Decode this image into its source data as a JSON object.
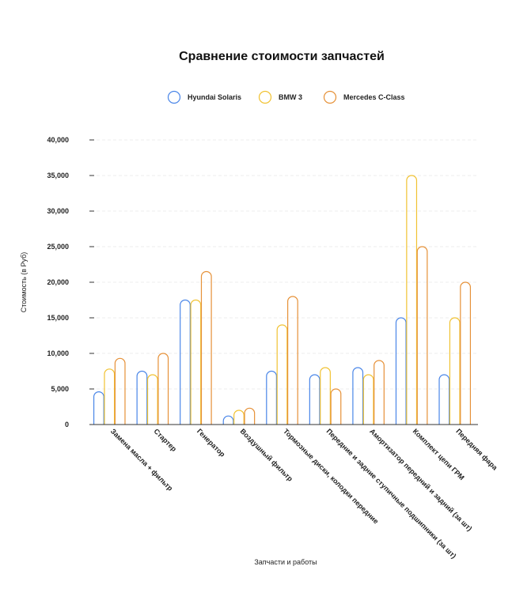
{
  "chart_data": {
    "type": "bar",
    "title": "Сравнение стоимости запчастей",
    "xlabel": "Запчасти и работы",
    "ylabel": "Стоимость (в Руб)",
    "ylim": [
      0,
      40000
    ],
    "yticks": [
      0,
      5000,
      10000,
      15000,
      20000,
      25000,
      30000,
      35000,
      40000
    ],
    "ytick_labels": [
      "0",
      "5,000",
      "10,000",
      "15,000",
      "20,000",
      "25,000",
      "30,000",
      "35,000",
      "40,000"
    ],
    "grid": true,
    "legend_position": "top-center",
    "categories": [
      "Замена масла + фильтр",
      "Стартер",
      "Генератор",
      "Воздушный фильтр",
      "Тормозные диски, колодки передние",
      "Передние и задние ступичные подшипники (за шт)",
      "Амортизатор передний и задний (за шт)",
      "Комплект цепи ГРМ",
      "Передняя фара"
    ],
    "series": [
      {
        "name": "Hyundai Solaris",
        "color": "#4a86e8",
        "values": [
          4600,
          7500,
          17500,
          1200,
          7500,
          7000,
          8000,
          15000,
          7000
        ]
      },
      {
        "name": "BMW 3",
        "color": "#f1c232",
        "values": [
          7800,
          7000,
          17500,
          2000,
          14000,
          8000,
          7000,
          35000,
          15000
        ]
      },
      {
        "name": "Mercedes C-Class",
        "color": "#e69138",
        "values": [
          9300,
          10000,
          21500,
          2300,
          18000,
          5000,
          9000,
          25000,
          20000
        ]
      }
    ]
  }
}
